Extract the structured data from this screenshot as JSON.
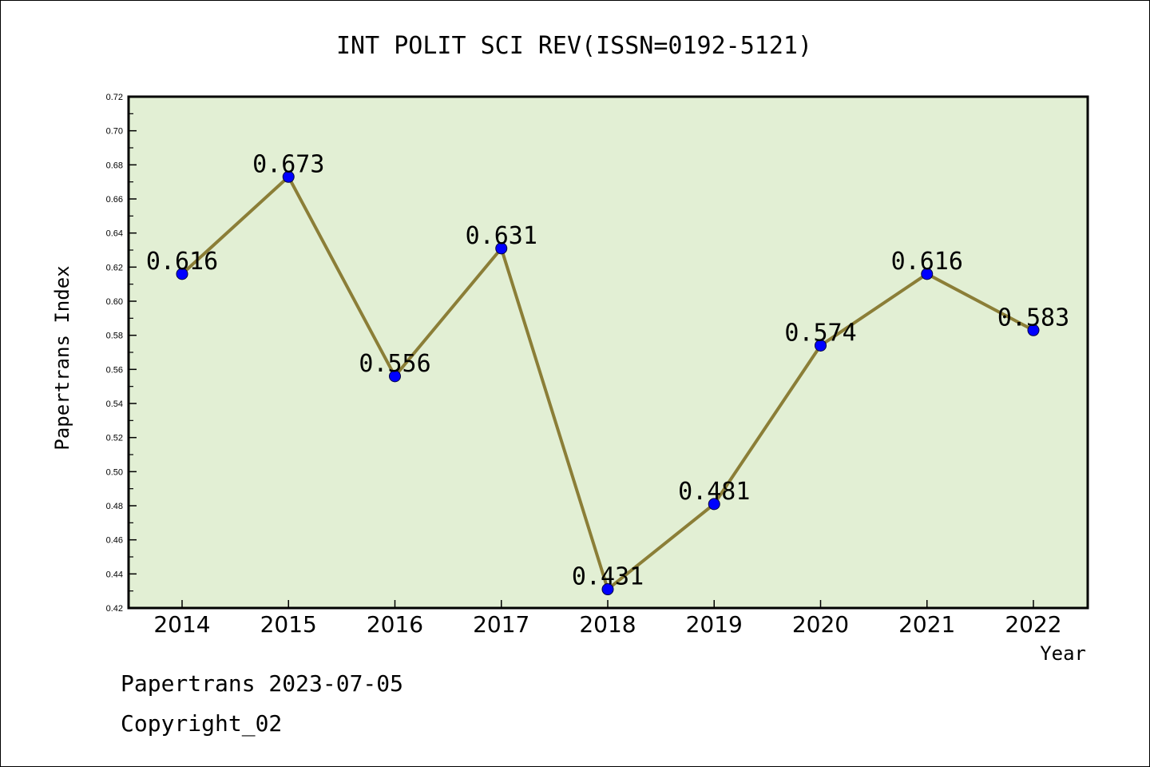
{
  "chart_data": {
    "type": "line",
    "title": "INT POLIT SCI REV(ISSN=0192-5121)",
    "xlabel": "Year",
    "ylabel": "Papertrans Index",
    "categories": [
      "2014",
      "2015",
      "2016",
      "2017",
      "2018",
      "2019",
      "2020",
      "2021",
      "2022"
    ],
    "values": [
      0.616,
      0.673,
      0.556,
      0.631,
      0.431,
      0.481,
      0.574,
      0.616,
      0.583
    ],
    "data_labels": [
      "0.616",
      "0.673",
      "0.556",
      "0.631",
      "0.431",
      "0.481",
      "0.574",
      "0.616",
      "0.583"
    ],
    "ylim": [
      0.42,
      0.72
    ],
    "yticks": [
      "0.42",
      "0.44",
      "0.46",
      "0.48",
      "0.50",
      "0.52",
      "0.54",
      "0.56",
      "0.58",
      "0.60",
      "0.62",
      "0.64",
      "0.66",
      "0.68",
      "0.70",
      "0.72"
    ],
    "grid": false,
    "legend": "none",
    "colors": {
      "plot_background": "#e2efd4",
      "line": "#8b7e37",
      "marker": "#0000ff"
    }
  },
  "footer": {
    "line1": "Papertrans 2023-07-05",
    "line2": "Copyright_02"
  }
}
